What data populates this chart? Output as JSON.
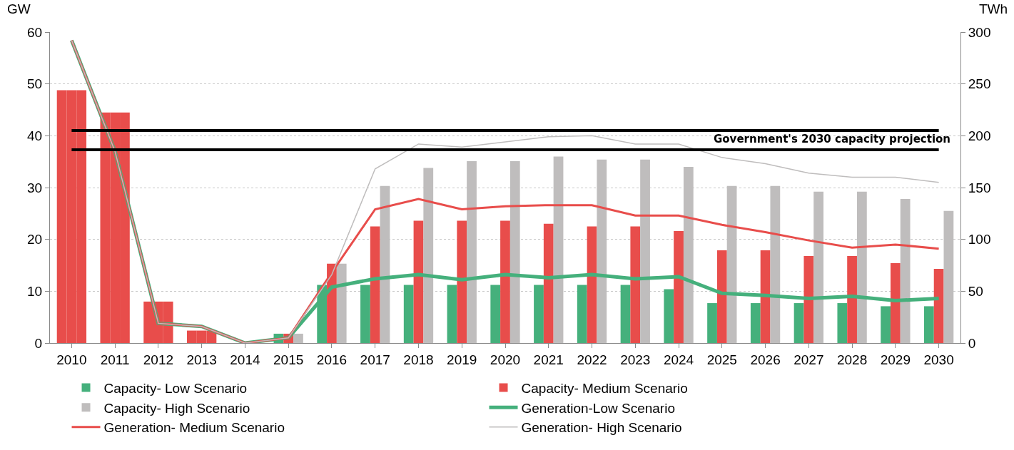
{
  "chart_data": {
    "type": "bar",
    "categories": [
      "2010",
      "2011",
      "2012",
      "2013",
      "2014",
      "2015",
      "2016",
      "2017",
      "2018",
      "2019",
      "2020",
      "2021",
      "2022",
      "2023",
      "2024",
      "2025",
      "2026",
      "2027",
      "2028",
      "2029",
      "2030"
    ],
    "ylabel": "GW",
    "y2label": "TWh",
    "ylim": [
      0,
      60
    ],
    "yticks": [
      0,
      10,
      20,
      30,
      40,
      50,
      60
    ],
    "y2lim": [
      0,
      300
    ],
    "y2ticks": [
      0,
      50,
      100,
      150,
      200,
      250,
      300
    ],
    "grid": "y",
    "legend": "bottom",
    "series": [
      {
        "name": "Capacity- Low Scenario",
        "color": "#45b07c",
        "colors": [
          "#e84d4b",
          "#e84d4b",
          "#e84d4b",
          "#e84d4b",
          "#e84d4b",
          "#45b07c",
          "#45b07c",
          "#45b07c",
          "#45b07c",
          "#45b07c",
          "#45b07c",
          "#45b07c",
          "#45b07c",
          "#45b07c",
          "#45b07c",
          "#45b07c",
          "#45b07c",
          "#45b07c",
          "#45b07c",
          "#45b07c",
          "#45b07c"
        ],
        "values": [
          48.8,
          44.5,
          8,
          2.4,
          0,
          1.8,
          11.2,
          11.2,
          11.2,
          11.2,
          11.2,
          11.2,
          11.2,
          11.2,
          10.4,
          7.7,
          7.7,
          7.7,
          7.7,
          7.1,
          7.1
        ]
      },
      {
        "name": "Capacity- Medium Scenario",
        "color": "#e84d4b",
        "values": [
          48.8,
          44.5,
          8,
          2.4,
          0,
          1.8,
          15.3,
          22.5,
          23.6,
          23.6,
          23.6,
          23.0,
          22.5,
          22.5,
          21.6,
          17.9,
          17.9,
          16.8,
          16.8,
          15.4,
          14.3
        ]
      },
      {
        "name": "Capacity- High Scenario",
        "color": "#bfbdbd",
        "colors": [
          "#e84d4b",
          "#e84d4b",
          "#e84d4b",
          "#e84d4b",
          "#e84d4b",
          "#bfbdbd",
          "#bfbdbd",
          "#bfbdbd",
          "#bfbdbd",
          "#bfbdbd",
          "#bfbdbd",
          "#bfbdbd",
          "#bfbdbd",
          "#bfbdbd",
          "#bfbdbd",
          "#bfbdbd",
          "#bfbdbd",
          "#bfbdbd",
          "#bfbdbd",
          "#bfbdbd",
          "#bfbdbd"
        ],
        "values": [
          48.8,
          44.5,
          8,
          2.4,
          0,
          1.8,
          15.3,
          30.3,
          33.8,
          35.1,
          35.1,
          36.0,
          35.4,
          35.4,
          34.0,
          30.3,
          30.3,
          29.2,
          29.2,
          27.8,
          25.5
        ]
      },
      {
        "name": "Generation-Low Scenario",
        "type": "line",
        "axis": "y2",
        "color": "#45b07c",
        "values": [
          292,
          185,
          19,
          16,
          0,
          5,
          54,
          62,
          66,
          61,
          66,
          63,
          66,
          62,
          64,
          48,
          46,
          43,
          45,
          41,
          43
        ]
      },
      {
        "name": "Generation- Medium Scenario",
        "type": "line",
        "axis": "y2",
        "color": "#e84d4b",
        "values": [
          292,
          185,
          19,
          16,
          0,
          5,
          68,
          129,
          139,
          129,
          132,
          133,
          133,
          123,
          123,
          114,
          107,
          99,
          92,
          95,
          91
        ]
      },
      {
        "name": "Generation- High Scenario",
        "type": "line",
        "axis": "y2",
        "color": "#bfbdbd",
        "values": [
          292,
          185,
          19,
          16,
          0,
          5,
          66,
          168,
          192,
          189,
          194,
          199,
          200,
          192,
          192,
          179,
          173,
          164,
          160,
          160,
          155
        ]
      }
    ],
    "ref_lines": [
      {
        "axis": "y",
        "value": 41,
        "color": "#000000"
      },
      {
        "axis": "y",
        "value": 37.3,
        "color": "#000000",
        "label": "Government's 2030 capacity projection"
      }
    ]
  }
}
